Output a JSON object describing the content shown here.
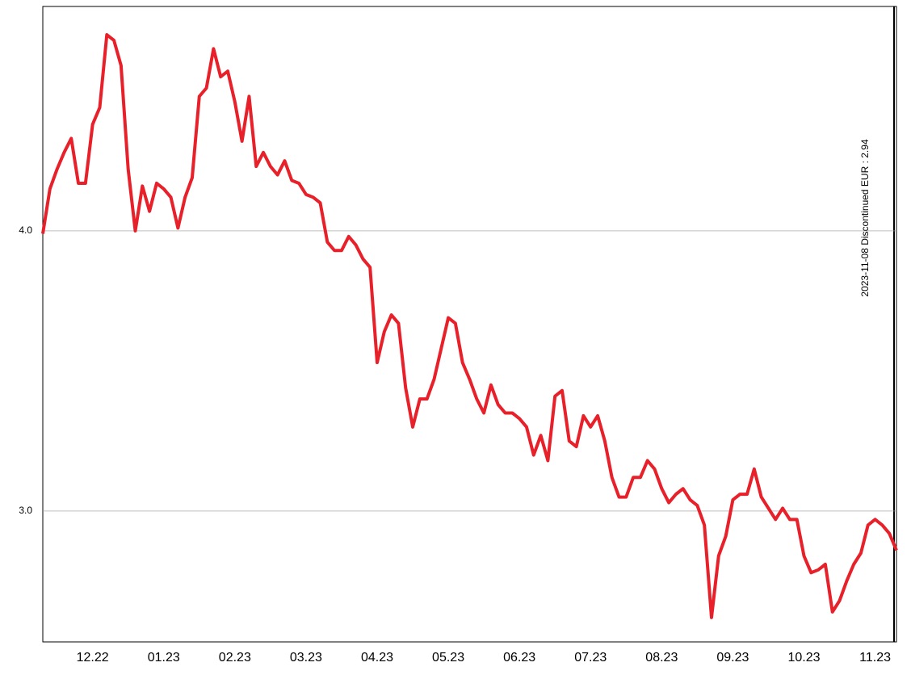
{
  "chart_data": {
    "type": "line",
    "annotation": "2023-11-08 Discontinued EUR : 2.94",
    "categories": [
      null,
      null,
      null,
      null,
      null,
      null,
      null,
      "12.22",
      null,
      null,
      null,
      null,
      null,
      null,
      null,
      null,
      null,
      "01.23",
      null,
      null,
      null,
      null,
      null,
      null,
      null,
      null,
      null,
      "02.23",
      null,
      null,
      null,
      null,
      null,
      null,
      null,
      null,
      null,
      "03.23",
      null,
      null,
      null,
      null,
      null,
      null,
      null,
      null,
      null,
      "04.23",
      null,
      null,
      null,
      null,
      null,
      null,
      null,
      null,
      null,
      "05.23",
      null,
      null,
      null,
      null,
      null,
      null,
      null,
      null,
      null,
      "06.23",
      null,
      null,
      null,
      null,
      null,
      null,
      null,
      null,
      null,
      "07.23",
      null,
      null,
      null,
      null,
      null,
      null,
      null,
      null,
      null,
      "08.23",
      null,
      null,
      null,
      null,
      null,
      null,
      null,
      null,
      null,
      "09.23",
      null,
      null,
      null,
      null,
      null,
      null,
      null,
      null,
      null,
      "10.23",
      null,
      null,
      null,
      null,
      null,
      null,
      null,
      null,
      null,
      "11.23",
      null,
      null,
      null
    ],
    "series": [
      {
        "color": "#e8202a",
        "values": [
          3.99,
          4.15,
          4.22,
          4.28,
          4.33,
          4.17,
          4.17,
          4.38,
          4.44,
          4.7,
          4.68,
          4.59,
          4.22,
          4.0,
          4.16,
          4.07,
          4.17,
          4.15,
          4.12,
          4.01,
          4.12,
          4.19,
          4.48,
          4.51,
          4.65,
          4.55,
          4.57,
          4.46,
          4.32,
          4.48,
          4.23,
          4.28,
          4.23,
          4.2,
          4.25,
          4.18,
          4.17,
          4.13,
          4.12,
          4.1,
          3.96,
          3.93,
          3.93,
          3.98,
          3.95,
          3.9,
          3.87,
          3.53,
          3.64,
          3.7,
          3.67,
          3.44,
          3.3,
          3.4,
          3.4,
          3.47,
          3.58,
          3.69,
          3.67,
          3.53,
          3.47,
          3.4,
          3.35,
          3.45,
          3.38,
          3.35,
          3.35,
          3.33,
          3.3,
          3.2,
          3.27,
          3.18,
          3.41,
          3.43,
          3.25,
          3.23,
          3.34,
          3.3,
          3.34,
          3.25,
          3.12,
          3.05,
          3.05,
          3.12,
          3.12,
          3.18,
          3.15,
          3.08,
          3.03,
          3.06,
          3.08,
          3.04,
          3.02,
          2.95,
          2.62,
          2.84,
          2.91,
          3.04,
          3.06,
          3.06,
          3.15,
          3.05,
          3.01,
          2.97,
          3.01,
          2.97,
          2.97,
          2.84,
          2.78,
          2.79,
          2.81,
          2.64,
          2.68,
          2.75,
          2.81,
          2.85,
          2.95,
          2.97,
          2.95,
          2.92,
          2.86
        ]
      }
    ],
    "ylim": [
      2.533,
      4.801
    ],
    "yticks": [
      {
        "value": 3,
        "label": "3.0"
      },
      {
        "value": 4,
        "label": "4.0"
      }
    ],
    "grid": true
  }
}
